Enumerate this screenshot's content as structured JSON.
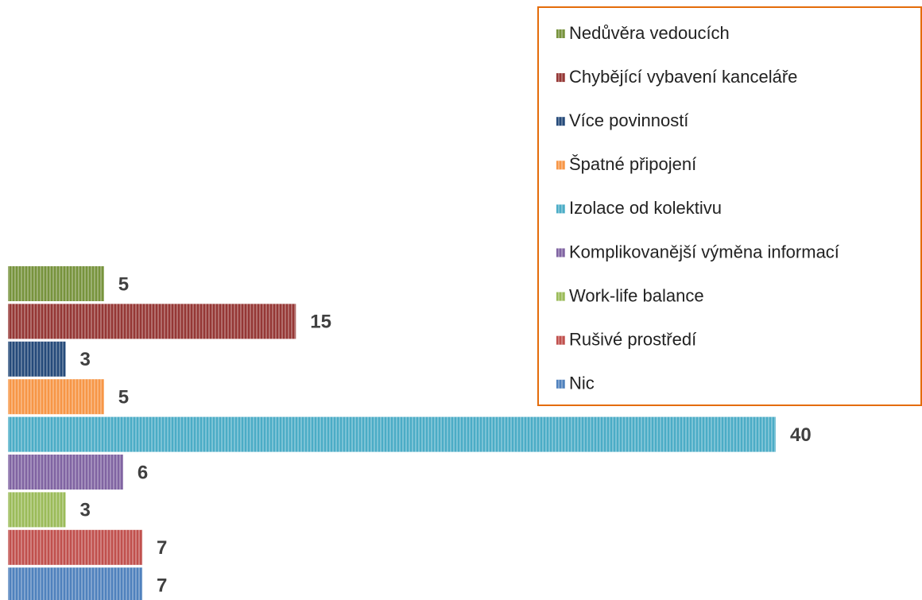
{
  "chart_data": {
    "type": "bar",
    "orientation": "horizontal",
    "series": [
      {
        "name": "Nedůvěra vedoucích",
        "color": "#77933c",
        "values": [
          5
        ]
      },
      {
        "name": "Chybějící vybavení kanceláře",
        "color": "#953735",
        "values": [
          15
        ]
      },
      {
        "name": "Více povinností",
        "color": "#254a7a",
        "values": [
          3
        ]
      },
      {
        "name": "Špatné připojení",
        "color": "#f79646",
        "values": [
          5
        ]
      },
      {
        "name": "Izolace od kolektivu",
        "color": "#4bacc6",
        "values": [
          40
        ]
      },
      {
        "name": "Komplikovanější výměna informací",
        "color": "#8064a2",
        "values": [
          6
        ]
      },
      {
        "name": "Work-life balance",
        "color": "#9bbb59",
        "values": [
          3
        ]
      },
      {
        "name": "Rušivé prostředí",
        "color": "#c0504d",
        "values": [
          7
        ]
      },
      {
        "name": "Nic",
        "color": "#4f81bd",
        "values": [
          7
        ]
      }
    ],
    "legend": "top-right"
  }
}
